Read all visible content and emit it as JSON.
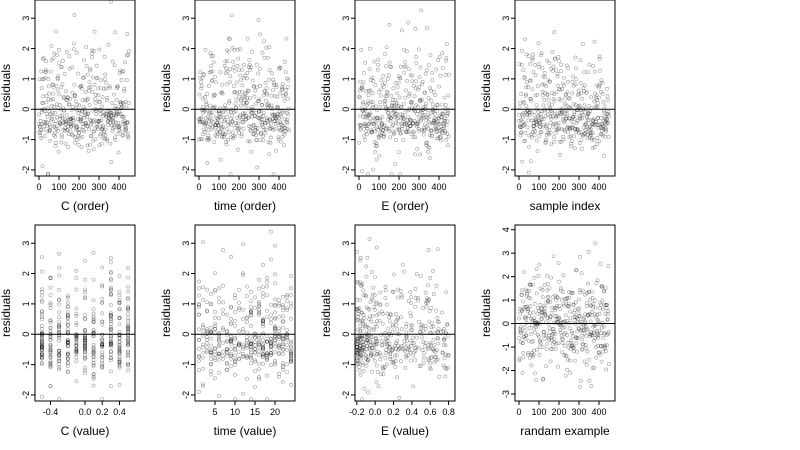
{
  "chart_data": [
    {
      "type": "scatter",
      "xlabel": "C (order)",
      "ylabel": "residuals",
      "xlim": [
        -20,
        480
      ],
      "ylim": [
        -2.2,
        3.6
      ],
      "xticks": [
        0,
        100,
        200,
        300,
        400
      ],
      "xtick_labels": [
        "0",
        "100",
        "200",
        "300",
        "400"
      ],
      "yticks": [
        -2,
        -1,
        0,
        1,
        2,
        3
      ],
      "ytick_labels": [
        "-2",
        "-1",
        "0",
        "1",
        "2",
        "3"
      ],
      "hline": 0,
      "n": 450,
      "seed": 11,
      "x": {
        "kind": "index"
      },
      "y": {
        "kind": "resid"
      }
    },
    {
      "type": "scatter",
      "xlabel": "time (order)",
      "ylabel": "residuals",
      "xlim": [
        -20,
        480
      ],
      "ylim": [
        -2.2,
        3.6
      ],
      "xticks": [
        0,
        100,
        200,
        300,
        400
      ],
      "xtick_labels": [
        "0",
        "100",
        "200",
        "300",
        "400"
      ],
      "yticks": [
        -2,
        -1,
        0,
        1,
        2,
        3
      ],
      "ytick_labels": [
        "-2",
        "-1",
        "0",
        "1",
        "2",
        "3"
      ],
      "hline": 0,
      "n": 450,
      "seed": 23,
      "x": {
        "kind": "index"
      },
      "y": {
        "kind": "resid"
      }
    },
    {
      "type": "scatter",
      "xlabel": "E (order)",
      "ylabel": "residuals",
      "xlim": [
        -20,
        480
      ],
      "ylim": [
        -2.2,
        3.6
      ],
      "xticks": [
        0,
        100,
        200,
        300,
        400
      ],
      "xtick_labels": [
        "0",
        "100",
        "200",
        "300",
        "400"
      ],
      "yticks": [
        -2,
        -1,
        0,
        1,
        2,
        3
      ],
      "ytick_labels": [
        "-2",
        "-1",
        "0",
        "1",
        "2",
        "3"
      ],
      "hline": 0,
      "n": 450,
      "seed": 37,
      "x": {
        "kind": "index"
      },
      "y": {
        "kind": "resid"
      }
    },
    {
      "type": "scatter",
      "xlabel": "sample index",
      "ylabel": "residuals",
      "xlim": [
        -20,
        480
      ],
      "ylim": [
        -2.2,
        3.6
      ],
      "xticks": [
        0,
        100,
        200,
        300,
        400
      ],
      "xtick_labels": [
        "0",
        "100",
        "200",
        "300",
        "400"
      ],
      "yticks": [
        -2,
        -1,
        0,
        1,
        2,
        3
      ],
      "ytick_labels": [
        "-2",
        "-1",
        "0",
        "1",
        "2",
        "3"
      ],
      "hline": 0,
      "n": 450,
      "seed": 41,
      "x": {
        "kind": "index"
      },
      "y": {
        "kind": "resid"
      }
    },
    {
      "type": "scatter",
      "xlabel": "C (value)",
      "ylabel": "residuals",
      "xlim": [
        -0.58,
        0.58
      ],
      "ylim": [
        -2.2,
        3.6
      ],
      "xticks": [
        -0.4,
        0.0,
        0.2,
        0.4
      ],
      "xtick_labels": [
        "-0.4",
        "0.0",
        "0.2",
        "0.4"
      ],
      "yticks": [
        -2,
        -1,
        0,
        1,
        2,
        3
      ],
      "ytick_labels": [
        "-2",
        "-1",
        "0",
        "1",
        "2",
        "3"
      ],
      "hline": 0,
      "n": 450,
      "seed": 53,
      "x": {
        "kind": "discrete",
        "levels": [
          -0.5,
          -0.4,
          -0.3,
          -0.2,
          -0.1,
          0.0,
          0.1,
          0.2,
          0.3,
          0.4,
          0.5
        ]
      },
      "y": {
        "kind": "resid"
      }
    },
    {
      "type": "scatter",
      "xlabel": "time (value)",
      "ylabel": "residuals",
      "xlim": [
        0,
        25
      ],
      "ylim": [
        -2.2,
        3.6
      ],
      "xticks": [
        5,
        10,
        15,
        20
      ],
      "xtick_labels": [
        "5",
        "10",
        "15",
        "20"
      ],
      "yticks": [
        -2,
        -1,
        0,
        1,
        2,
        3
      ],
      "ytick_labels": [
        "-2",
        "-1",
        "0",
        "1",
        "2",
        "3"
      ],
      "hline": 0,
      "n": 450,
      "seed": 67,
      "x": {
        "kind": "discrete",
        "levels": [
          1,
          2,
          3,
          4,
          5,
          6,
          7,
          8,
          9,
          10,
          11,
          12,
          13,
          14,
          15,
          16,
          17,
          18,
          19,
          20,
          21,
          22,
          23,
          24
        ]
      },
      "y": {
        "kind": "resid"
      }
    },
    {
      "type": "scatter",
      "xlabel": "E (value)",
      "ylabel": "residuals",
      "xlim": [
        -0.22,
        0.87
      ],
      "ylim": [
        -2.2,
        3.6
      ],
      "xticks": [
        -0.2,
        0.0,
        0.2,
        0.4,
        0.6,
        0.8
      ],
      "xtick_labels": [
        "-0.2",
        "0.0",
        "0.2",
        "0.4",
        "0.6",
        "0.8"
      ],
      "yticks": [
        -2,
        -1,
        0,
        1,
        2,
        3
      ],
      "ytick_labels": [
        "-2",
        "-1",
        "0",
        "1",
        "2",
        "3"
      ],
      "hline": 0,
      "n": 450,
      "seed": 79,
      "x": {
        "kind": "skewed",
        "min": -0.2,
        "max": 0.8
      },
      "y": {
        "kind": "resid"
      }
    },
    {
      "type": "scatter",
      "xlabel": "randam example",
      "ylabel": "residuals",
      "xlim": [
        -20,
        480
      ],
      "ylim": [
        -3.3,
        4.2
      ],
      "xticks": [
        0,
        100,
        200,
        300,
        400
      ],
      "xtick_labels": [
        "0",
        "100",
        "200",
        "300",
        "400"
      ],
      "yticks": [
        -3,
        -2,
        -1,
        0,
        1,
        2,
        3,
        4
      ],
      "ytick_labels": [
        "-3",
        "-2",
        "-1",
        "0",
        "1",
        "2",
        "3",
        "4"
      ],
      "hline": 0,
      "n": 450,
      "seed": 97,
      "x": {
        "kind": "index"
      },
      "y": {
        "kind": "normal"
      }
    }
  ]
}
